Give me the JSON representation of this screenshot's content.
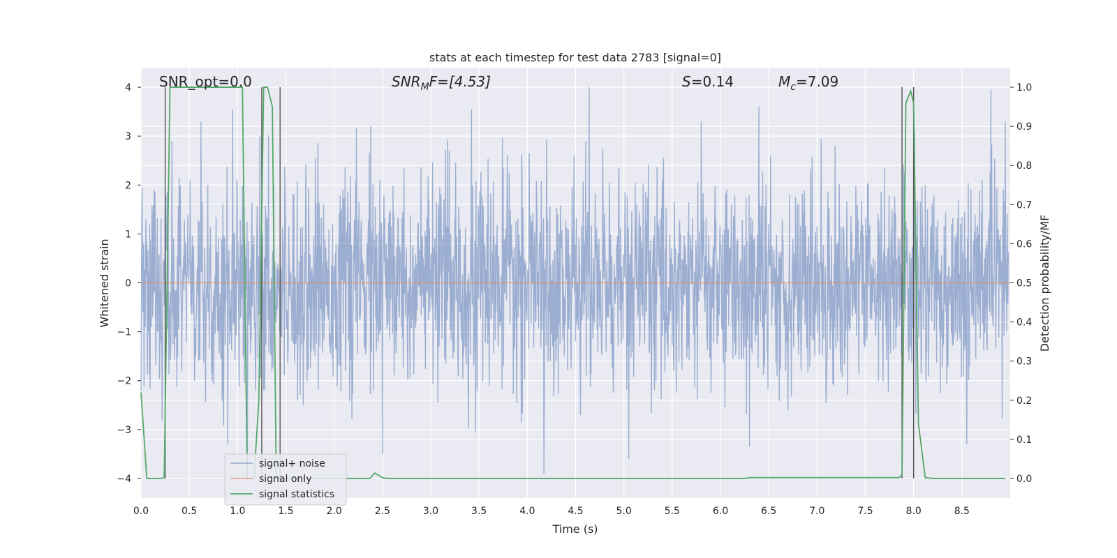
{
  "chart_data": {
    "type": "line",
    "title": "stats at each timestep for test data 2783 [signal=0]",
    "xlabel": "Time (s)",
    "ylabel": "Whitened strain",
    "ylabel_right": "Detection probability/MF",
    "xlim": [
      0,
      9
    ],
    "ylim": [
      -4.4,
      4.4
    ],
    "ylim_right": [
      -0.05,
      1.05
    ],
    "x_ticks": [
      "0.0",
      "0.5",
      "1.0",
      "1.5",
      "2.0",
      "2.5",
      "3.0",
      "3.5",
      "4.0",
      "4.5",
      "5.0",
      "5.5",
      "6.0",
      "6.5",
      "7.0",
      "7.5",
      "8.0",
      "8.5"
    ],
    "y_ticks": [
      "4",
      "3",
      "2",
      "1",
      "0",
      "−1",
      "−2",
      "−3",
      "−4"
    ],
    "y_ticks_right": [
      "1.0",
      "0.9",
      "0.8",
      "0.7",
      "0.6",
      "0.5",
      "0.4",
      "0.3",
      "0.2",
      "0.1",
      "0.0"
    ],
    "grid": true,
    "legend_position": "lower-left",
    "annotations": {
      "snr_opt": "SNR_opt=0.0",
      "snr_mf_main": "SNR",
      "snr_mf_sub": "M",
      "snr_mf_tail": "F=[4.53]",
      "s_main": "S",
      "s_tail": "=0.14",
      "mc_main": "M",
      "mc_sub": "c",
      "mc_tail": "=7.09"
    },
    "vertical_markers_x": [
      0.25,
      1.25,
      1.44,
      7.88,
      8.0
    ],
    "series": [
      {
        "name": "signal+ noise",
        "color": "#4c72b0",
        "note_style": "dense noise, approx amplitude 1.6 sigma, peaks to ±4",
        "peaks": [
          {
            "x": 0.32,
            "y": 2.9
          },
          {
            "x": 0.62,
            "y": 3.3
          },
          {
            "x": 0.95,
            "y": 3.55
          },
          {
            "x": 1.23,
            "y": 3.0
          },
          {
            "x": 2.38,
            "y": 3.2
          },
          {
            "x": 3.42,
            "y": 3.55
          },
          {
            "x": 4.64,
            "y": 4.0
          },
          {
            "x": 5.8,
            "y": 3.3
          },
          {
            "x": 6.4,
            "y": 3.6
          },
          {
            "x": 8.8,
            "y": 3.95
          },
          {
            "x": 8.95,
            "y": 3.3
          },
          {
            "x": 0.9,
            "y": -3.3
          },
          {
            "x": 1.1,
            "y": -3.8
          },
          {
            "x": 2.5,
            "y": -3.5
          },
          {
            "x": 4.17,
            "y": -3.9
          },
          {
            "x": 5.05,
            "y": -3.6
          },
          {
            "x": 6.3,
            "y": -3.35
          },
          {
            "x": 8.55,
            "y": -3.3
          }
        ]
      },
      {
        "name": "signal only",
        "color": "#dd8452",
        "x": [
          0,
          9
        ],
        "y": [
          0,
          0
        ]
      },
      {
        "name": "signal statistics",
        "color": "#55a868",
        "axis": "right",
        "x": [
          0,
          0.06,
          0.2,
          0.24,
          0.3,
          1.0,
          1.05,
          1.1,
          1.17,
          1.22,
          1.27,
          1.31,
          1.36,
          1.4,
          1.46,
          1.52,
          2.37,
          2.42,
          2.5,
          2.55,
          6.25,
          6.3,
          7.85,
          7.88,
          7.92,
          7.97,
          8.0,
          8.05,
          8.12,
          8.2,
          8.95
        ],
        "y": [
          0.22,
          0.0,
          0.0,
          0.002,
          1.0,
          1.0,
          1.0,
          0.0,
          0.0,
          0.2,
          1.0,
          1.0,
          0.95,
          0.0,
          0.0,
          0.0,
          0.0,
          0.014,
          0.002,
          0.0,
          0.0,
          0.002,
          0.002,
          0.01,
          0.96,
          0.99,
          0.96,
          0.14,
          0.002,
          0.0,
          0.0
        ]
      }
    ]
  }
}
